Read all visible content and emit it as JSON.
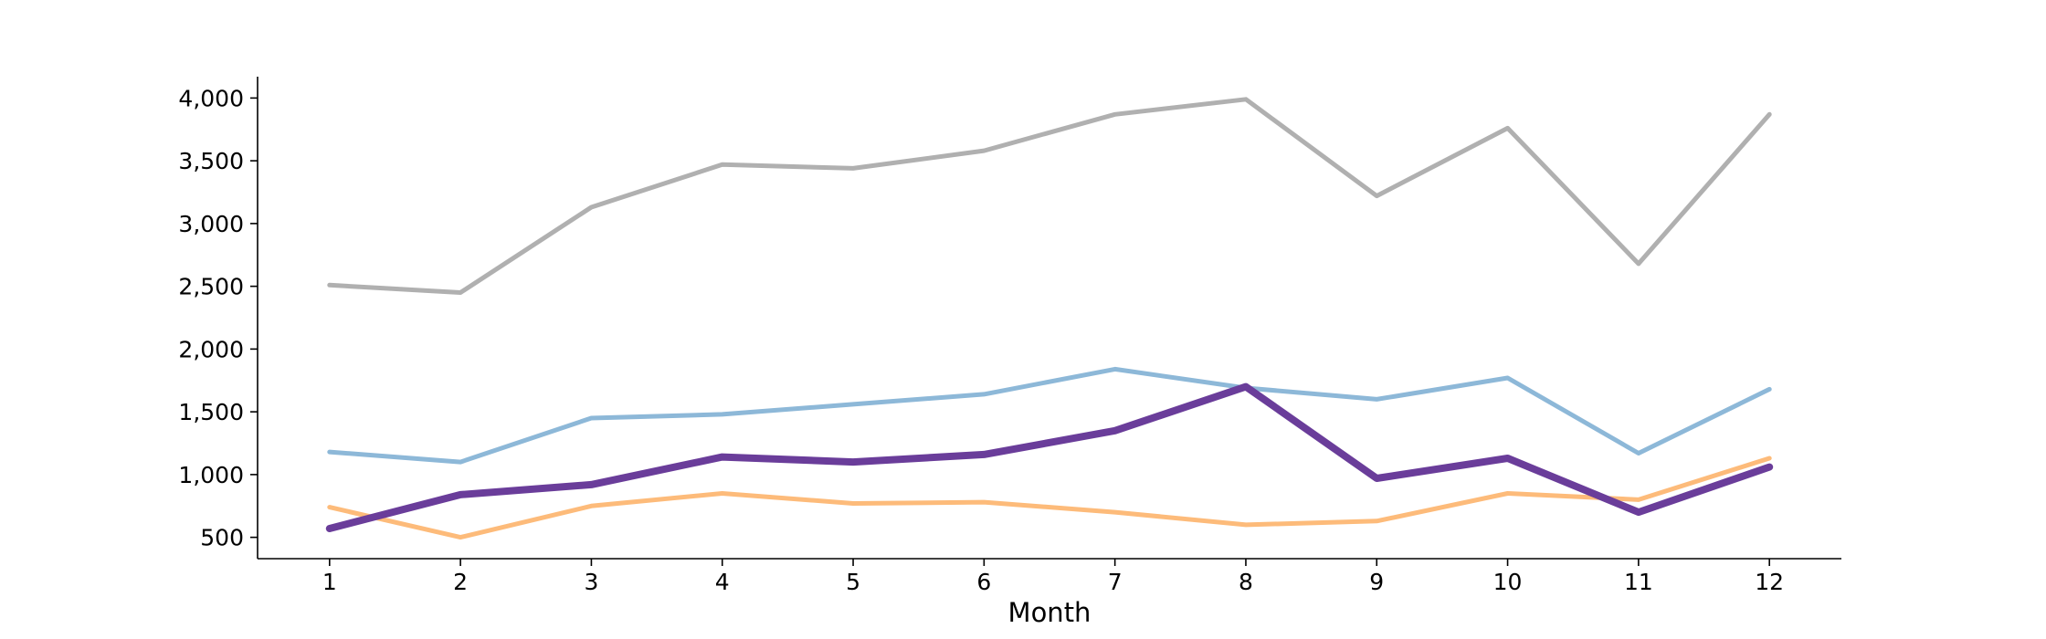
{
  "chart_data": {
    "type": "line",
    "title": "",
    "xlabel": "Month",
    "ylabel": "",
    "x": [
      1,
      2,
      3,
      4,
      5,
      6,
      7,
      8,
      9,
      10,
      11,
      12
    ],
    "xlim": [
      0.45,
      12.55
    ],
    "ylim": [
      330,
      4170
    ],
    "yticks": [
      500,
      1000,
      1500,
      2000,
      2500,
      3000,
      3500,
      4000
    ],
    "ytick_labels": [
      "500",
      "1,000",
      "1,500",
      "2,000",
      "2,500",
      "3,000",
      "3,500",
      "4,000"
    ],
    "xtick_labels": [
      "1",
      "2",
      "3",
      "4",
      "5",
      "6",
      "7",
      "8",
      "9",
      "10",
      "11",
      "12"
    ],
    "grid": false,
    "legend": "none",
    "series": [
      {
        "color": "#b0b0b0",
        "values": [
          2510,
          2450,
          3130,
          3470,
          3440,
          3580,
          3870,
          3990,
          3220,
          3760,
          2680,
          3870
        ]
      },
      {
        "color": "#8db8d8",
        "values": [
          1180,
          1100,
          1450,
          1480,
          1560,
          1640,
          1840,
          1690,
          1600,
          1770,
          1170,
          1680
        ]
      },
      {
        "color": "#fdbb7a",
        "values": [
          740,
          500,
          750,
          850,
          770,
          780,
          700,
          600,
          630,
          850,
          800,
          1130
        ]
      },
      {
        "color": "#6a3d9a",
        "values": [
          570,
          840,
          920,
          1140,
          1100,
          1160,
          1350,
          1700,
          970,
          1130,
          700,
          1060
        ],
        "emphasis": true
      }
    ]
  }
}
